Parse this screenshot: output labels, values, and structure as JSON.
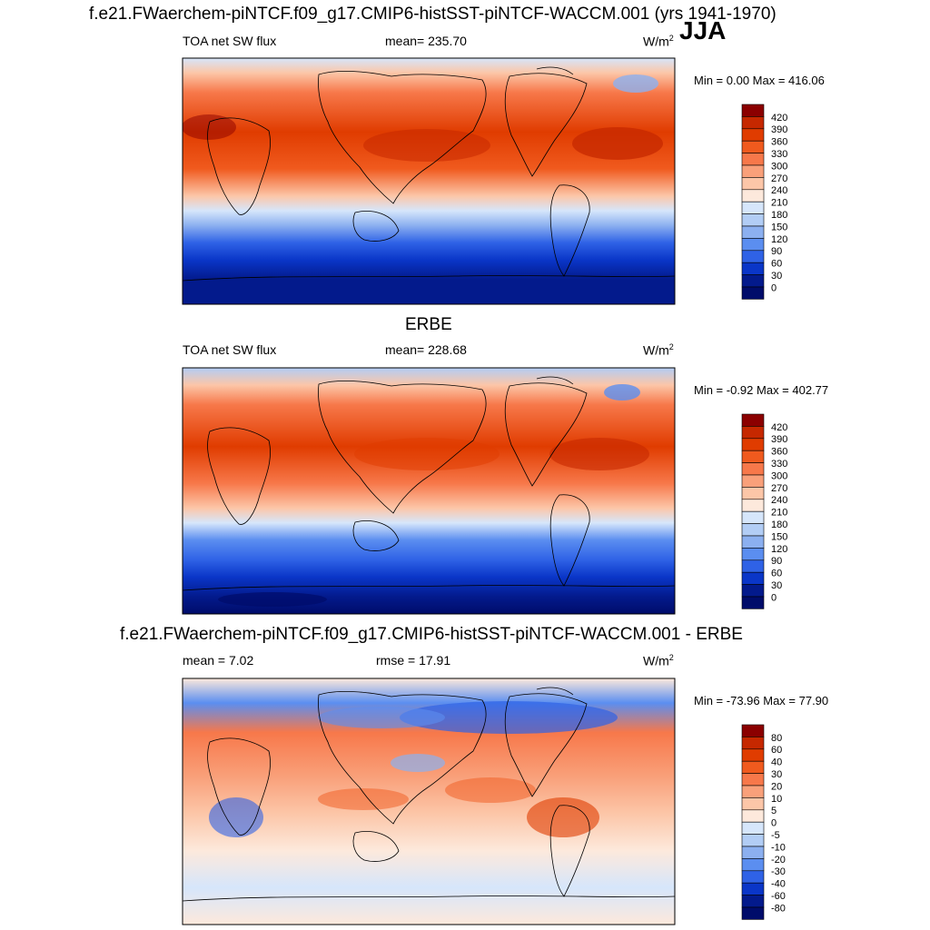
{
  "season": "JJA",
  "titles": {
    "top": "f.e21.FWaerchem-piNTCF.f09_g17.CMIP6-histSST-piNTCF-WACCM.001 (yrs 1941-1970)",
    "middle": "ERBE",
    "bottom": "f.e21.FWaerchem-piNTCF.f09_g17.CMIP6-histSST-piNTCF-WACCM.001 - ERBE"
  },
  "units": "W/m",
  "units_exp": "2",
  "chart_data": [
    {
      "type": "heatmap",
      "map": "global",
      "variable": "TOA net SW flux",
      "mean_label": "mean= 235.70",
      "mean": 235.7,
      "minmax_label": "Min =   0.00 Max = 416.06",
      "min": 0.0,
      "max": 416.06,
      "colorbar": {
        "levels": [
          "420",
          "390",
          "360",
          "330",
          "300",
          "270",
          "240",
          "210",
          "180",
          "150",
          "120",
          "90",
          "60",
          "30",
          "0"
        ],
        "colors": [
          "#8b0000",
          "#c62800",
          "#e03c00",
          "#f05a1e",
          "#f7784a",
          "#f9a07a",
          "#fcc6a8",
          "#fde9dc",
          "#d6e6fb",
          "#b2cdf5",
          "#8cb0f0",
          "#5b8ef0",
          "#2f62e6",
          "#0a36c8",
          "#031a8c",
          "#000c6a"
        ]
      }
    },
    {
      "type": "heatmap",
      "map": "global",
      "variable": "TOA net SW flux",
      "mean_label": "mean= 228.68",
      "mean": 228.68,
      "minmax_label": "Min =  -0.92 Max = 402.77",
      "min": -0.92,
      "max": 402.77,
      "colorbar": {
        "levels": [
          "420",
          "390",
          "360",
          "330",
          "300",
          "270",
          "240",
          "210",
          "180",
          "150",
          "120",
          "90",
          "60",
          "30",
          "0"
        ],
        "colors": [
          "#8b0000",
          "#c62800",
          "#e03c00",
          "#f05a1e",
          "#f7784a",
          "#f9a07a",
          "#fcc6a8",
          "#fde9dc",
          "#d6e6fb",
          "#b2cdf5",
          "#8cb0f0",
          "#5b8ef0",
          "#2f62e6",
          "#0a36c8",
          "#031a8c",
          "#000c6a"
        ]
      }
    },
    {
      "type": "heatmap",
      "map": "global",
      "mean_label": "mean =   7.02",
      "mean": 7.02,
      "rmse_label": "rmse =  17.91",
      "rmse": 17.91,
      "minmax_label": "Min = -73.96 Max =  77.90",
      "min": -73.96,
      "max": 77.9,
      "colorbar": {
        "levels": [
          "80",
          "60",
          "40",
          "30",
          "20",
          "10",
          "5",
          "0",
          "-5",
          "-10",
          "-20",
          "-30",
          "-40",
          "-60",
          "-80"
        ],
        "colors": [
          "#8b0000",
          "#c62800",
          "#e03c00",
          "#f05a1e",
          "#f7784a",
          "#f9a07a",
          "#fcc6a8",
          "#fde9dc",
          "#d6e6fb",
          "#b2cdf5",
          "#8cb0f0",
          "#5b8ef0",
          "#2f62e6",
          "#0a36c8",
          "#031a8c",
          "#000c6a"
        ]
      }
    }
  ]
}
